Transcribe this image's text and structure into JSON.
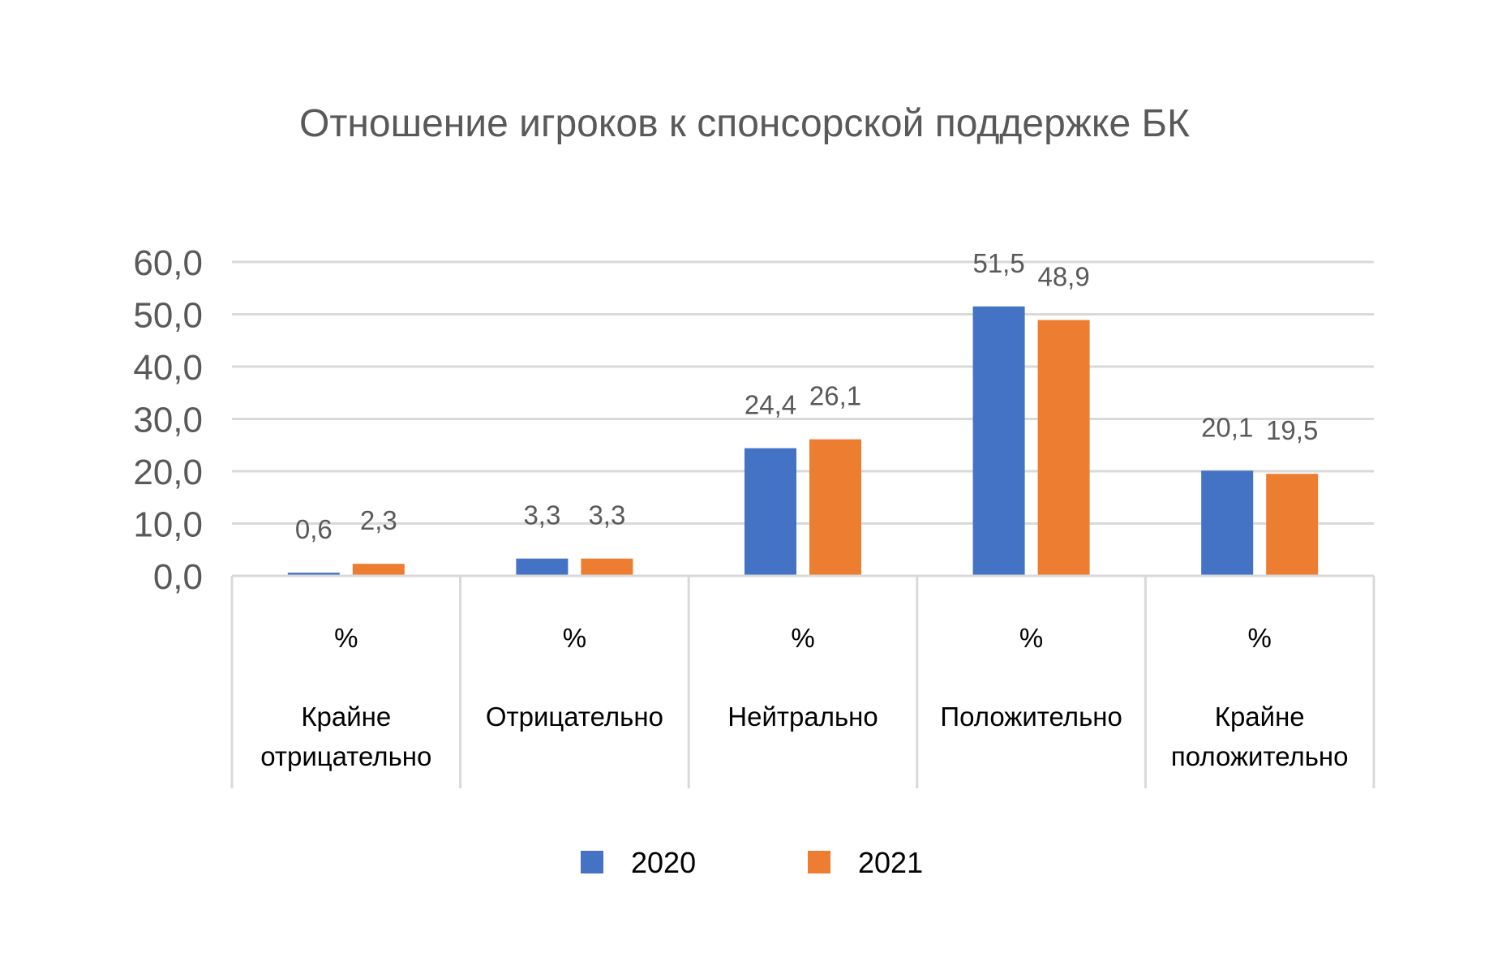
{
  "chart_data": {
    "type": "bar",
    "title": "Отношение игроков к спонсорской поддержке БК",
    "categories": [
      {
        "unit": "%",
        "label": [
          "Крайне",
          "отрицательно"
        ]
      },
      {
        "unit": "%",
        "label": [
          "Отрицательно"
        ]
      },
      {
        "unit": "%",
        "label": [
          "Нейтрально"
        ]
      },
      {
        "unit": "%",
        "label": [
          "Положительно"
        ]
      },
      {
        "unit": "%",
        "label": [
          "Крайне",
          "положительно"
        ]
      }
    ],
    "series": [
      {
        "name": "2020",
        "color": "#4472C4",
        "values": [
          0.6,
          3.3,
          24.4,
          51.5,
          20.1
        ],
        "labels": [
          "0,6",
          "3,3",
          "24,4",
          "51,5",
          "20,1"
        ]
      },
      {
        "name": "2021",
        "color": "#ED7D31",
        "values": [
          2.3,
          3.3,
          26.1,
          48.9,
          19.5
        ],
        "labels": [
          "2,3",
          "3,3",
          "26,1",
          "48,9",
          "19,5"
        ]
      }
    ],
    "ylim": [
      0,
      60
    ],
    "yticks": [
      "0,0",
      "10,0",
      "20,0",
      "30,0",
      "40,0",
      "50,0",
      "60,0"
    ],
    "grid": true,
    "legend_position": "bottom"
  }
}
